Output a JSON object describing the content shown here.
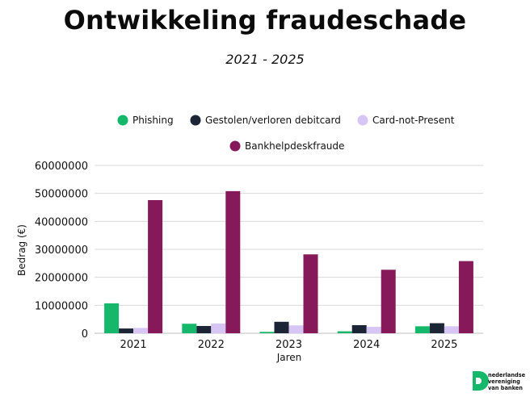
{
  "colors": {
    "Phishing": "#15b86a",
    "Gestolen/verloren debitcard": "#1c2536",
    "Card-not-Present": "#d7c6f5",
    "Bankhelpdeskfraude": "#86195a",
    "grid": "#d9d9d9",
    "logo_green": "#15b86a"
  },
  "logo": {
    "icon": "nvb-logo-icon",
    "lines": [
      "nederlandse",
      "vereniging",
      "van banken"
    ]
  },
  "chart_data": {
    "type": "bar",
    "title": "Ontwikkeling fraudeschade",
    "subtitle": "2021 - 2025",
    "xlabel": "Jaren",
    "ylabel": "Bedrag (€)",
    "ylim": [
      0,
      60000000
    ],
    "yticks": [
      0,
      10000000,
      20000000,
      30000000,
      40000000,
      50000000,
      60000000
    ],
    "ytick_labels": [
      "0",
      "10000000",
      "20000000",
      "30000000",
      "40000000",
      "50000000",
      "60000000"
    ],
    "grid": true,
    "legend_position": "top-center",
    "categories": [
      "2021",
      "2022",
      "2023",
      "2024",
      "2025"
    ],
    "series": [
      {
        "name": "Phishing",
        "values": [
          10700000,
          3400000,
          500000,
          700000,
          2500000
        ]
      },
      {
        "name": "Gestolen/verloren debitcard",
        "values": [
          1700000,
          2600000,
          4100000,
          2900000,
          3600000
        ]
      },
      {
        "name": "Card-not-Present",
        "values": [
          1900000,
          3500000,
          2800000,
          2300000,
          2500000
        ]
      },
      {
        "name": "Bankhelpdeskfraude",
        "values": [
          47600000,
          50800000,
          28200000,
          22700000,
          25800000
        ]
      }
    ]
  }
}
